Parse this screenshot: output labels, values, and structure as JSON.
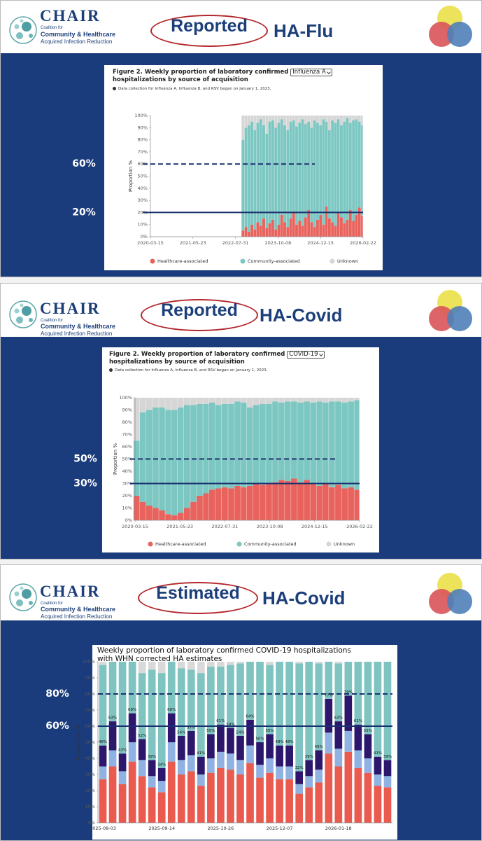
{
  "slides": [
    {
      "header": {
        "logo_name": "CHAIR",
        "logo_line1": "Coalition for",
        "logo_line2": "Community & Healthcare",
        "logo_line3": "Acquired Infection Reduction",
        "oval_word": "Reported",
        "title": "HA-Flu"
      }
    },
    {
      "header": {
        "logo_name": "CHAIR",
        "logo_line1": "Coalition for",
        "logo_line2": "Community & Healthcare",
        "logo_line3": "Acquired Infection Reduction",
        "oval_word": "Reported",
        "title": "HA-Covid"
      }
    },
    {
      "header": {
        "logo_name": "CHAIR",
        "logo_line1": "Coalition for",
        "logo_line2": "Community & Healthcare",
        "logo_line3": "Acquired Infection Reduction",
        "oval_word": "Estimated",
        "title": "HA-Covid"
      }
    }
  ],
  "chart_data": [
    {
      "type": "stacked_bar",
      "title_lead": "Figure 2. Weekly proportion of laboratory confirmed",
      "selector": "Influenza A",
      "title_tail": "hospitalizations by source of acquisition",
      "note": "Data collection for Influenza A, Influenza B, and RSV began on January 1, 2023.",
      "y_label": "Proportion %",
      "x": [
        "2022-10",
        "2022-11",
        "2022-12",
        "2023-01",
        "2023-02",
        "2023-03",
        "2023-04",
        "2023-05",
        "2023-06",
        "2023-07",
        "2023-08",
        "2023-09",
        "2023-10",
        "2023-11",
        "2023-12",
        "2024-01",
        "2024-02",
        "2024-03",
        "2024-04",
        "2024-05",
        "2024-06",
        "2024-07",
        "2024-08",
        "2024-09",
        "2024-10",
        "2024-11",
        "2024-12",
        "2025-01",
        "2025-02",
        "2025-03",
        "2025-04",
        "2025-05",
        "2025-06",
        "2025-07",
        "2025-08",
        "2025-09",
        "2025-10",
        "2025-11",
        "2025-12",
        "2026-01",
        "2026-02"
      ],
      "xlim": [
        "2020-03-15",
        "2026-02-22"
      ],
      "xticks": [
        "2020-03-15",
        "2021-05-23",
        "2022-07-31",
        "2023-10-08",
        "2024-12-15",
        "2026-02-22"
      ],
      "ylim": [
        0,
        100
      ],
      "yticks": [
        {
          "value": 0,
          "label": "0%"
        },
        {
          "value": 10,
          "label": "10%"
        },
        {
          "value": 20,
          "label": "20%"
        },
        {
          "value": 30,
          "label": "30%"
        },
        {
          "value": 40,
          "label": "40%"
        },
        {
          "value": 50,
          "label": "50%"
        },
        {
          "value": 60,
          "label": "60%"
        },
        {
          "value": 70,
          "label": "70%"
        },
        {
          "value": 80,
          "label": "80%"
        },
        {
          "value": 90,
          "label": "90%"
        },
        {
          "value": 100,
          "label": "100%"
        }
      ],
      "grid": false,
      "series": [
        {
          "name": "Healthcare-associated",
          "color": "#e8635d",
          "values": [
            5,
            8,
            4,
            10,
            6,
            12,
            9,
            15,
            7,
            11,
            14,
            6,
            10,
            18,
            12,
            8,
            15,
            20,
            10,
            13,
            9,
            16,
            22,
            12,
            8,
            14,
            18,
            10,
            25,
            15,
            12,
            9,
            20,
            16,
            11,
            14,
            22,
            13,
            18,
            24,
            17
          ]
        },
        {
          "name": "Community-associated",
          "color": "#7cc7c2",
          "values": [
            75,
            82,
            88,
            85,
            82,
            82,
            88,
            77,
            78,
            84,
            82,
            84,
            84,
            79,
            80,
            80,
            80,
            76,
            81,
            81,
            88,
            77,
            73,
            78,
            88,
            80,
            74,
            87,
            70,
            73,
            84,
            85,
            77,
            76,
            84,
            84,
            72,
            83,
            79,
            71,
            75
          ]
        },
        {
          "name": "Unknown",
          "color": "#d6d6d6",
          "values": [
            20,
            10,
            8,
            5,
            12,
            6,
            3,
            8,
            15,
            5,
            4,
            10,
            6,
            3,
            8,
            12,
            5,
            4,
            9,
            6,
            3,
            7,
            5,
            10,
            4,
            6,
            8,
            3,
            5,
            12,
            4,
            6,
            3,
            8,
            5,
            2,
            6,
            4,
            3,
            5,
            8
          ]
        }
      ],
      "reference_lines": [
        {
          "label": "60%",
          "value": 60,
          "style": "dashed"
        },
        {
          "label": "20%",
          "value": 20,
          "style": "solid"
        }
      ]
    },
    {
      "type": "stacked_bar",
      "title_lead": "Figure 2. Weekly proportion of laboratory confirmed",
      "selector": "COVID-19",
      "title_tail": "hospitalizations by source of acquisition",
      "note": "Data collection for Influenza A, Influenza B, and RSV began on January 1, 2023.",
      "y_label": "Proportion %",
      "x": [
        "2020-03",
        "2020-05",
        "2020-07",
        "2020-09",
        "2020-11",
        "2021-01",
        "2021-03",
        "2021-05",
        "2021-07",
        "2021-09",
        "2021-11",
        "2022-01",
        "2022-03",
        "2022-05",
        "2022-07",
        "2022-09",
        "2022-11",
        "2023-01",
        "2023-03",
        "2023-05",
        "2023-07",
        "2023-09",
        "2023-11",
        "2024-01",
        "2024-03",
        "2024-05",
        "2024-07",
        "2024-09",
        "2024-11",
        "2025-01",
        "2025-03",
        "2025-05",
        "2025-07",
        "2025-09",
        "2025-11",
        "2026-01"
      ],
      "xlim": [
        "2020-03-15",
        "2026-02-22"
      ],
      "xticks": [
        "2020-03-15",
        "2021-05-23",
        "2022-07-31",
        "2023-10-08",
        "2024-12-15",
        "2026-02-22"
      ],
      "ylim": [
        0,
        100
      ],
      "yticks": [
        {
          "value": 0,
          "label": "0%"
        },
        {
          "value": 10,
          "label": "10%"
        },
        {
          "value": 20,
          "label": "20%"
        },
        {
          "value": 30,
          "label": "30%"
        },
        {
          "value": 40,
          "label": "40%"
        },
        {
          "value": 50,
          "label": "50%"
        },
        {
          "value": 60,
          "label": "60%"
        },
        {
          "value": 70,
          "label": "70%"
        },
        {
          "value": 80,
          "label": "80%"
        },
        {
          "value": 90,
          "label": "90%"
        },
        {
          "value": 100,
          "label": "100%"
        }
      ],
      "grid": false,
      "series": [
        {
          "name": "Healthcare-associated",
          "color": "#e8635d",
          "values": [
            20,
            15,
            12,
            10,
            8,
            5,
            4,
            6,
            10,
            15,
            20,
            22,
            25,
            26,
            27,
            26,
            28,
            27,
            28,
            30,
            29,
            30,
            31,
            33,
            32,
            34,
            31,
            33,
            30,
            28,
            30,
            27,
            29,
            26,
            27,
            25
          ]
        },
        {
          "name": "Community-associated",
          "color": "#7cc7c2",
          "values": [
            45,
            73,
            78,
            82,
            84,
            85,
            86,
            86,
            84,
            79,
            75,
            73,
            71,
            68,
            68,
            69,
            69,
            69,
            64,
            64,
            66,
            65,
            66,
            63,
            65,
            63,
            65,
            64,
            66,
            69,
            66,
            70,
            68,
            70,
            70,
            73
          ]
        },
        {
          "name": "Unknown",
          "color": "#d6d6d6",
          "values": [
            35,
            12,
            10,
            8,
            8,
            10,
            10,
            8,
            6,
            6,
            5,
            5,
            4,
            6,
            5,
            5,
            3,
            4,
            8,
            6,
            5,
            5,
            3,
            4,
            3,
            3,
            4,
            3,
            4,
            3,
            4,
            3,
            3,
            4,
            3,
            2
          ]
        }
      ],
      "reference_lines": [
        {
          "label": "50%",
          "value": 50,
          "style": "dashed"
        },
        {
          "label": "30%",
          "value": 30,
          "style": "solid"
        }
      ]
    },
    {
      "type": "stacked_bar",
      "title": [
        "Weekly proportion of laboratory confirmed COVID-19 hospitalizations",
        "with WHN corrected HA estimates"
      ],
      "y_label": "Proportion %",
      "categories": [
        "2025-08-03",
        null,
        null,
        null,
        null,
        null,
        "2025-09-14",
        null,
        null,
        null,
        null,
        null,
        "2025-10-26",
        null,
        null,
        null,
        null,
        null,
        "2025-12-07",
        null,
        null,
        null,
        null,
        null,
        "2026-01-18",
        null,
        null,
        null,
        null,
        null
      ],
      "ylim": [
        0,
        100
      ],
      "yticks": [
        {
          "value": 0,
          "label": "0%"
        },
        {
          "value": 10,
          "label": "10%"
        },
        {
          "value": 20,
          "label": "20%"
        },
        {
          "value": 30,
          "label": "30%"
        },
        {
          "value": 40,
          "label": "40%"
        },
        {
          "value": 50,
          "label": "50%"
        },
        {
          "value": 60,
          "label": "60%"
        },
        {
          "value": 70,
          "label": "70%"
        },
        {
          "value": 80,
          "label": "80%"
        },
        {
          "value": 90,
          "label": "90%"
        },
        {
          "value": 100,
          "label": "100%"
        }
      ],
      "grid": false,
      "series": [
        {
          "color": "#ea5a4f",
          "values": [
            27,
            35,
            24,
            38,
            29,
            22,
            19,
            38,
            30,
            32,
            23,
            31,
            34,
            33,
            30,
            37,
            28,
            31,
            27,
            27,
            18,
            22,
            25,
            43,
            35,
            44,
            34,
            31,
            23,
            22
          ]
        },
        {
          "color": "#8fb2e2",
          "values": [
            8,
            10,
            8,
            12,
            10,
            7,
            7,
            12,
            9,
            10,
            7,
            9,
            10,
            10,
            9,
            11,
            8,
            9,
            8,
            8,
            6,
            7,
            8,
            13,
            11,
            13,
            11,
            9,
            7,
            7
          ]
        },
        {
          "color": "#2c176c",
          "values": [
            13,
            18,
            11,
            18,
            13,
            10,
            8,
            18,
            15,
            15,
            11,
            15,
            17,
            16,
            15,
            16,
            14,
            15,
            13,
            13,
            8,
            10,
            12,
            21,
            17,
            22,
            16,
            15,
            11,
            10
          ]
        },
        {
          "color": "#7fc4c1",
          "values": [
            50,
            37,
            57,
            32,
            41,
            56,
            59,
            32,
            42,
            38,
            52,
            42,
            36,
            39,
            45,
            36,
            50,
            43,
            52,
            52,
            67,
            61,
            54,
            23,
            36,
            21,
            39,
            45,
            59,
            61
          ]
        },
        {
          "color": "#d9d9d9",
          "values": [
            2,
            0,
            0,
            0,
            7,
            5,
            7,
            0,
            4,
            5,
            7,
            3,
            3,
            2,
            1,
            0,
            0,
            2,
            0,
            0,
            1,
            0,
            1,
            0,
            1,
            0,
            0,
            0,
            0,
            0
          ]
        }
      ],
      "totals": {
        "values": [
          48,
          63,
          43,
          68,
          52,
          39,
          34,
          68,
          54,
          57,
          41,
          55,
          61,
          59,
          54,
          64,
          50,
          55,
          48,
          48,
          32,
          39,
          45,
          77,
          63,
          79,
          61,
          55,
          41,
          39
        ],
        "value_labels": [
          "48%",
          "63%",
          "43%",
          "68%",
          "52%",
          "39%",
          "34%",
          "68%",
          "54%",
          "57%",
          "41%",
          "55%",
          "61%",
          "59%",
          "54%",
          "64%",
          "50%",
          "55%",
          "48%",
          "48%",
          "32%",
          "39%",
          "45%",
          "77%",
          "63%",
          "79%",
          "61%",
          "55%",
          "41%",
          "39%"
        ]
      },
      "reference_lines": [
        {
          "label": "80%",
          "value": 80,
          "style": "dashed"
        },
        {
          "label": "60%",
          "value": 60,
          "style": "solid"
        }
      ]
    }
  ]
}
